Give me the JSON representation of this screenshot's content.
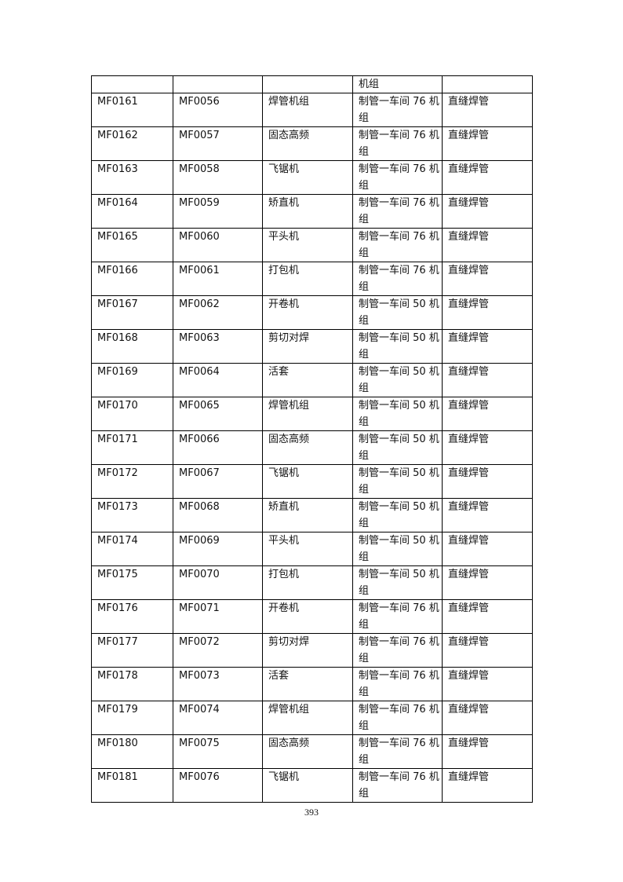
{
  "table": {
    "continuation_row": [
      "",
      "",
      "",
      "机组",
      ""
    ],
    "rows": [
      [
        "MF0161",
        "MF0056",
        "焊管机组",
        "制管一车间 76 机组",
        "直缝焊管"
      ],
      [
        "MF0162",
        "MF0057",
        "固态高频",
        "制管一车间 76 机组",
        "直缝焊管"
      ],
      [
        "MF0163",
        "MF0058",
        "飞锯机",
        "制管一车间 76 机组",
        "直缝焊管"
      ],
      [
        "MF0164",
        "MF0059",
        "矫直机",
        "制管一车间 76 机组",
        "直缝焊管"
      ],
      [
        "MF0165",
        "MF0060",
        "平头机",
        "制管一车间 76 机组",
        "直缝焊管"
      ],
      [
        "MF0166",
        "MF0061",
        "打包机",
        "制管一车间 76 机组",
        "直缝焊管"
      ],
      [
        "MF0167",
        "MF0062",
        "开卷机",
        "制管一车间 50 机组",
        "直缝焊管"
      ],
      [
        "MF0168",
        "MF0063",
        "剪切对焊",
        "制管一车间 50 机组",
        "直缝焊管"
      ],
      [
        "MF0169",
        "MF0064",
        "活套",
        "制管一车间 50 机组",
        "直缝焊管"
      ],
      [
        "MF0170",
        "MF0065",
        "焊管机组",
        "制管一车间 50 机组",
        "直缝焊管"
      ],
      [
        "MF0171",
        "MF0066",
        "固态高频",
        "制管一车间 50 机组",
        "直缝焊管"
      ],
      [
        "MF0172",
        "MF0067",
        "飞锯机",
        "制管一车间 50 机组",
        "直缝焊管"
      ],
      [
        "MF0173",
        "MF0068",
        "矫直机",
        "制管一车间 50 机组",
        "直缝焊管"
      ],
      [
        "MF0174",
        "MF0069",
        "平头机",
        "制管一车间 50 机组",
        "直缝焊管"
      ],
      [
        "MF0175",
        "MF0070",
        "打包机",
        "制管一车间 50 机组",
        "直缝焊管"
      ],
      [
        "MF0176",
        "MF0071",
        "开卷机",
        "制管一车间 76 机组",
        "直缝焊管"
      ],
      [
        "MF0177",
        "MF0072",
        "剪切对焊",
        "制管一车间 76 机组",
        "直缝焊管"
      ],
      [
        "MF0178",
        "MF0073",
        "活套",
        "制管一车间 76 机组",
        "直缝焊管"
      ],
      [
        "MF0179",
        "MF0074",
        "焊管机组",
        "制管一车间 76 机组",
        "直缝焊管"
      ],
      [
        "MF0180",
        "MF0075",
        "固态高频",
        "制管一车间 76 机组",
        "直缝焊管"
      ],
      [
        "MF0181",
        "MF0076",
        "飞锯机",
        "制管一车间 76 机组",
        "直缝焊管"
      ]
    ]
  },
  "page_number": "393"
}
